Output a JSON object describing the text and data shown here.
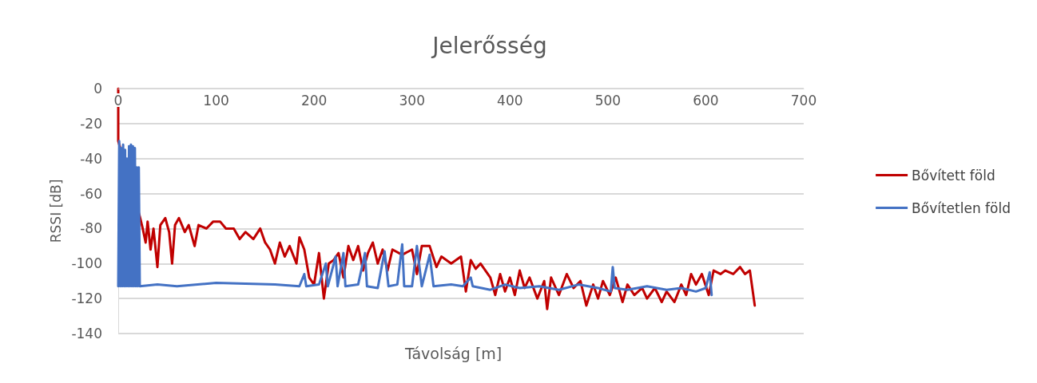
{
  "chart_data": {
    "type": "line",
    "title": "Jelerősség",
    "xlabel": "Távolság [m]",
    "ylabel": "RSSI [dB]",
    "xlim": [
      0,
      700
    ],
    "xticks": [
      0,
      100,
      200,
      300,
      400,
      500,
      600,
      700
    ],
    "ylim": [
      -140,
      0
    ],
    "yticks": [
      -140,
      -120,
      -100,
      -80,
      -60,
      -40,
      -20,
      0
    ],
    "grid": "y",
    "legend": "right",
    "marker": "none",
    "line_style": "solid",
    "series": [
      {
        "name": "Bővített föld",
        "color": "#c00000",
        "x": [
          0,
          0,
          22,
          25,
          28,
          30,
          33,
          36,
          40,
          43,
          48,
          52,
          55,
          58,
          62,
          68,
          72,
          78,
          82,
          90,
          97,
          104,
          110,
          118,
          124,
          130,
          138,
          145,
          150,
          155,
          160,
          165,
          170,
          175,
          182,
          185,
          190,
          195,
          200,
          205,
          210,
          215,
          220,
          225,
          230,
          235,
          240,
          245,
          250,
          255,
          260,
          265,
          270,
          275,
          280,
          290,
          300,
          305,
          310,
          318,
          325,
          330,
          340,
          350,
          355,
          360,
          365,
          370,
          380,
          385,
          390,
          395,
          400,
          405,
          410,
          415,
          420,
          428,
          435,
          438,
          442,
          450,
          458,
          465,
          472,
          478,
          485,
          490,
          495,
          502,
          508,
          515,
          520,
          527,
          535,
          540,
          548,
          555,
          560,
          568,
          575,
          580,
          585,
          590,
          596,
          603,
          608,
          615,
          620,
          628,
          635,
          640,
          645,
          650
        ],
        "values": [
          0,
          -30,
          -73,
          -80,
          -88,
          -76,
          -92,
          -80,
          -102,
          -78,
          -74,
          -82,
          -100,
          -78,
          -74,
          -82,
          -78,
          -90,
          -78,
          -80,
          -76,
          -76,
          -80,
          -80,
          -86,
          -82,
          -86,
          -80,
          -88,
          -92,
          -100,
          -88,
          -96,
          -90,
          -100,
          -85,
          -92,
          -108,
          -112,
          -94,
          -120,
          -100,
          -98,
          -94,
          -108,
          -90,
          -98,
          -90,
          -104,
          -94,
          -88,
          -100,
          -92,
          -104,
          -92,
          -95,
          -92,
          -106,
          -90,
          -90,
          -102,
          -96,
          -100,
          -96,
          -116,
          -98,
          -103,
          -100,
          -108,
          -118,
          -106,
          -116,
          -108,
          -118,
          -104,
          -114,
          -108,
          -120,
          -110,
          -126,
          -108,
          -118,
          -106,
          -114,
          -110,
          -124,
          -112,
          -120,
          -110,
          -118,
          -108,
          -122,
          -112,
          -118,
          -114,
          -120,
          -114,
          -122,
          -116,
          -122,
          -112,
          -118,
          -106,
          -112,
          -106,
          -118,
          -104,
          -106,
          -104,
          -106,
          -102,
          -106,
          -104,
          -124
        ]
      },
      {
        "name": "Bővítetlen föld",
        "color": "#4472c4",
        "x": [
          0,
          1,
          2,
          3,
          4,
          5,
          6,
          7,
          8,
          9,
          10,
          11,
          12,
          13,
          14,
          15,
          16,
          17,
          18,
          19,
          20,
          21,
          22,
          40,
          60,
          100,
          160,
          185,
          190,
          192,
          205,
          212,
          214,
          222,
          224,
          230,
          232,
          245,
          252,
          254,
          265,
          272,
          276,
          285,
          290,
          292,
          300,
          305,
          310,
          318,
          322,
          340,
          352,
          360,
          362,
          380,
          395,
          410,
          430,
          450,
          470,
          490,
          503,
          505,
          507,
          520,
          540,
          560,
          575,
          590,
          600,
          604,
          606
        ],
        "values": [
          -113,
          -30,
          -113,
          -34,
          -113,
          -32,
          -113,
          -35,
          -113,
          -40,
          -113,
          -33,
          -113,
          -32,
          -113,
          -33,
          -113,
          -34,
          -113,
          -45,
          -113,
          -45,
          -113,
          -112,
          -113,
          -111,
          -112,
          -113,
          -106,
          -113,
          -112,
          -100,
          -113,
          -96,
          -113,
          -94,
          -113,
          -112,
          -94,
          -113,
          -114,
          -93,
          -113,
          -112,
          -89,
          -113,
          -113,
          -90,
          -113,
          -95,
          -113,
          -112,
          -113,
          -108,
          -113,
          -115,
          -112,
          -114,
          -113,
          -115,
          -112,
          -114,
          -116,
          -102,
          -114,
          -115,
          -113,
          -115,
          -114,
          -116,
          -114,
          -105,
          -118
        ]
      }
    ]
  }
}
